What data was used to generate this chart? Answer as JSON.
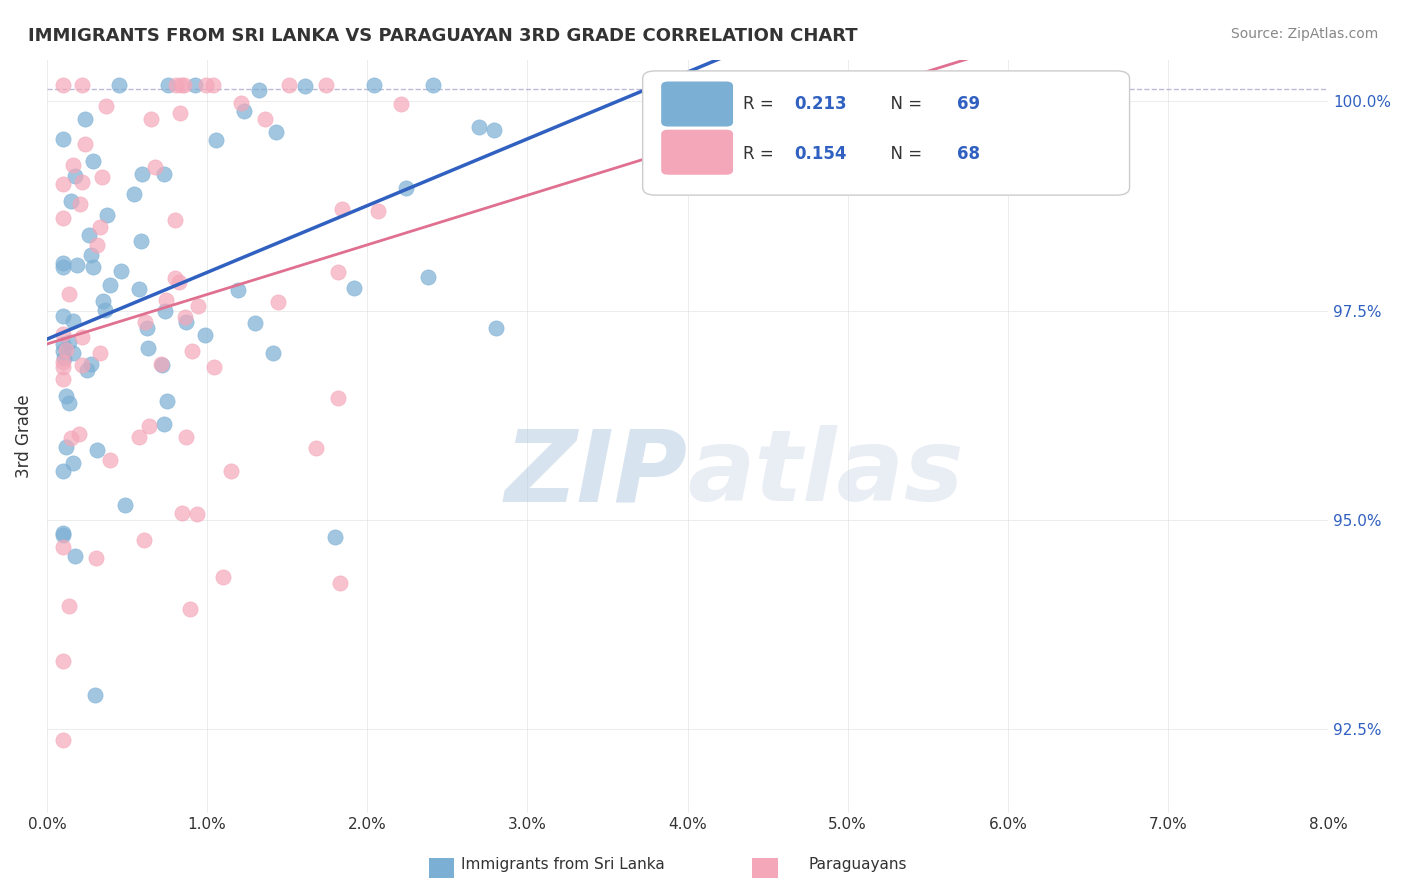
{
  "title": "IMMIGRANTS FROM SRI LANKA VS PARAGUAYAN 3RD GRADE CORRELATION CHART",
  "source": "Source: ZipAtlas.com",
  "ylabel": "3rd Grade",
  "legend_label1": "Immigrants from Sri Lanka",
  "legend_label2": "Paraguayans",
  "color_blue": "#7bafd4",
  "color_pink": "#f4a7b9",
  "color_blue_line": "#3060c0",
  "color_pink_line": "#e07090",
  "color_dashed": "#9090c0",
  "watermark_zip": "ZIP",
  "watermark_atlas": "atlas",
  "xlim": [
    0.0,
    0.08
  ],
  "ylim": [
    0.915,
    1.005
  ],
  "blue_R": 0.213,
  "blue_N": 69,
  "pink_R": 0.154,
  "pink_N": 68
}
